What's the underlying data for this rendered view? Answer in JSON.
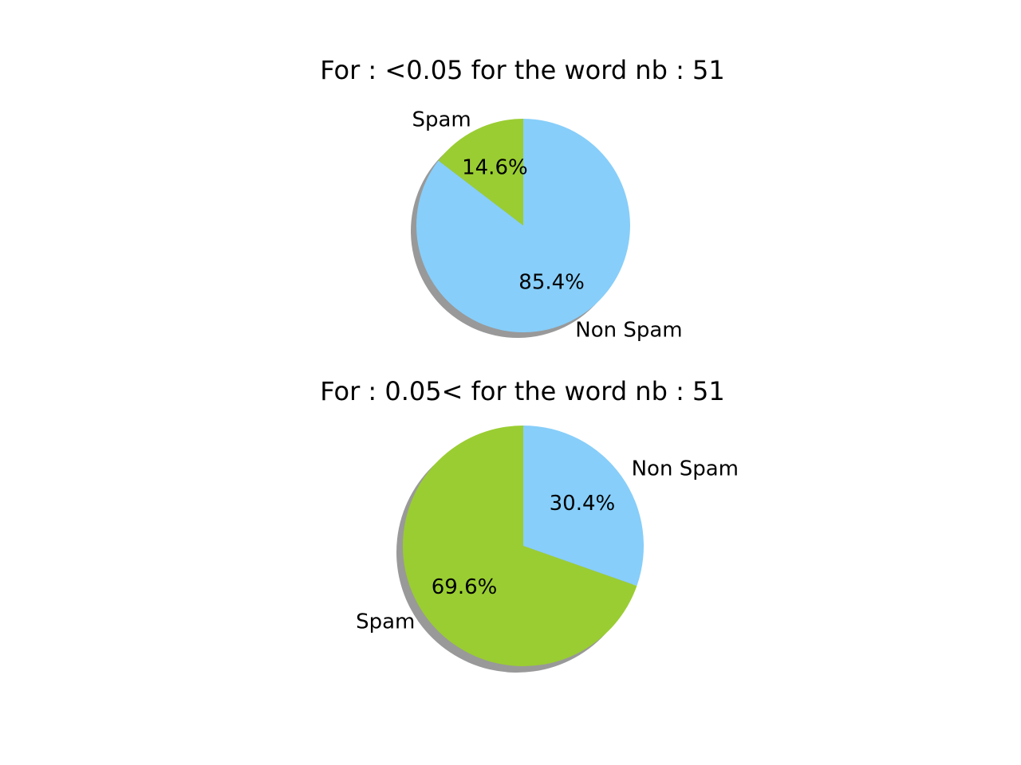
{
  "chart_data": [
    {
      "type": "pie",
      "title": "For : <0.05 for the word nb : 51",
      "slices": [
        {
          "label": "Non Spam",
          "value": 85.4,
          "pct_label": "85.4%",
          "color": "#87CEFA"
        },
        {
          "label": "Spam",
          "value": 14.6,
          "pct_label": "14.6%",
          "color": "#9ACD32"
        }
      ],
      "shadow": true,
      "start_angle_deg": 90,
      "direction": "clockwise"
    },
    {
      "type": "pie",
      "title": "For : 0.05< for the word nb : 51",
      "slices": [
        {
          "label": "Non Spam",
          "value": 30.4,
          "pct_label": "30.4%",
          "color": "#87CEFA"
        },
        {
          "label": "Spam",
          "value": 69.6,
          "pct_label": "69.6%",
          "color": "#9ACD32"
        }
      ],
      "shadow": true,
      "start_angle_deg": 90,
      "direction": "clockwise"
    }
  ]
}
